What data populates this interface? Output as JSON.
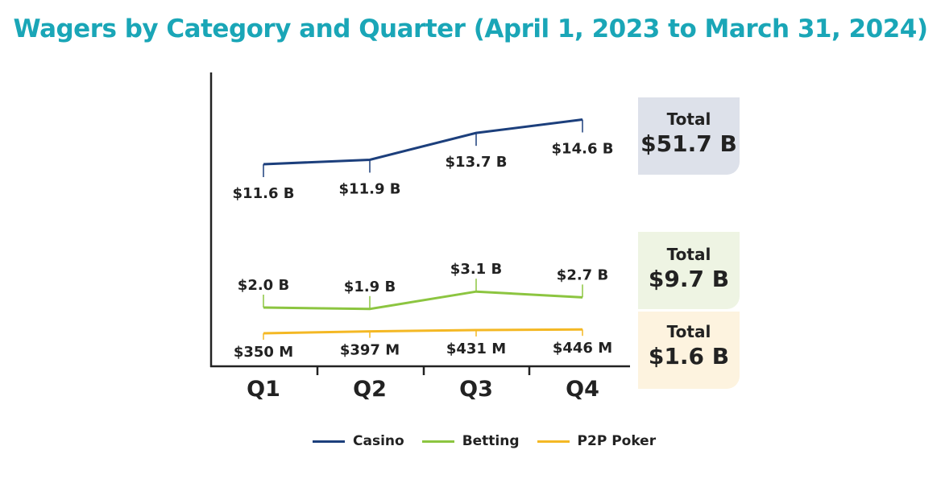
{
  "chart_data": {
    "type": "line",
    "title": "Wagers by Category and Quarter (April 1, 2023 to March 31, 2024)",
    "categories": [
      "Q1",
      "Q2",
      "Q3",
      "Q4"
    ],
    "series": [
      {
        "name": "Casino",
        "unit": "B",
        "values": [
          11.6,
          11.9,
          13.7,
          14.6
        ],
        "labels": [
          "$11.6 B",
          "$11.9 B",
          "$13.7 B",
          "$14.6 B"
        ],
        "color": "#1c3f7c",
        "total": "$51.7 B",
        "total_bg": "#dde1ea"
      },
      {
        "name": "Betting",
        "unit": "B",
        "values": [
          2.0,
          1.9,
          3.1,
          2.7
        ],
        "labels": [
          "$2.0 B",
          "$1.9 B",
          "$3.1 B",
          "$2.7 B"
        ],
        "color": "#8cc540",
        "total": "$9.7 B",
        "total_bg": "#eef4e3"
      },
      {
        "name": "P2P Poker",
        "unit": "M",
        "values": [
          350,
          397,
          431,
          446
        ],
        "labels": [
          "$350 M",
          "$397 M",
          "$431 M",
          "$446 M"
        ],
        "color": "#f4b824",
        "total": "$1.6 B",
        "total_bg": "#fdf3df"
      }
    ],
    "total_label": "Total",
    "legend": "bottom",
    "grid": false,
    "xlabel": "",
    "ylabel": ""
  }
}
